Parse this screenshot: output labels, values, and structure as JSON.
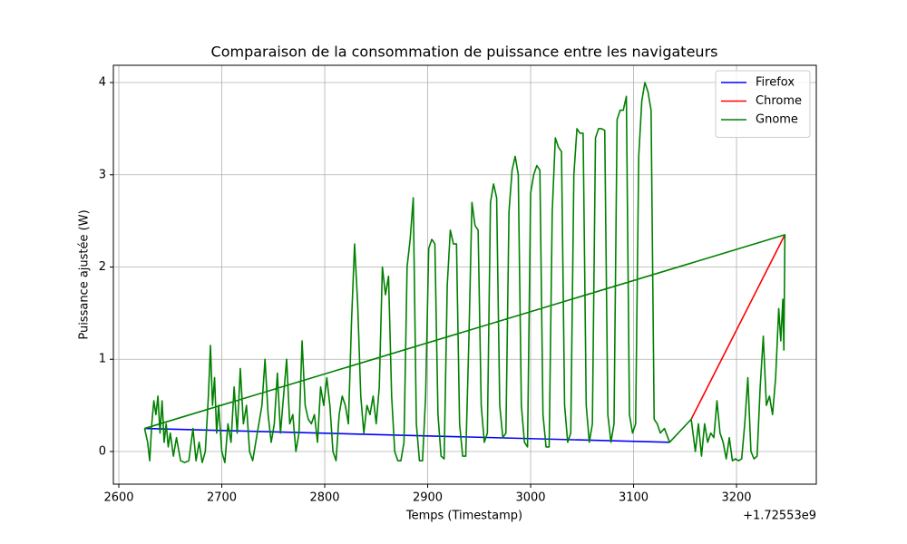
{
  "chart_data": {
    "type": "line",
    "title": "Comparaison de la consommation de puissance entre les navigateurs",
    "x_label": "Temps (Timestamp)",
    "x_offset_label": "+1.72553e9",
    "y_label": "Puissance ajustée (W)",
    "xlim": [
      2594.7,
      3277.5
    ],
    "ylim": [
      -0.354,
      4.187
    ],
    "xticks": [
      2600,
      2700,
      2800,
      2900,
      3000,
      3100,
      3200
    ],
    "yticks": [
      0,
      1,
      2,
      3,
      4
    ],
    "grid": true,
    "legend": "upper right",
    "series": [
      {
        "name": "Firefox",
        "color": "#0000ff",
        "x": [
          2625,
          3135
        ],
        "values": [
          0.25,
          0.1
        ]
      },
      {
        "name": "Chrome",
        "color": "#ff0000",
        "x": [
          3156,
          3247
        ],
        "values": [
          0.35,
          2.35
        ]
      },
      {
        "name": "Gnome",
        "color": "#008000",
        "x": [
          2625,
          2628,
          2630,
          2632,
          2634,
          2636,
          2638,
          2640,
          2642,
          2644,
          2646,
          2648,
          2650,
          2653,
          2656,
          2660,
          2664,
          2668,
          2672,
          2675,
          2678,
          2681,
          2684,
          2687,
          2689,
          2691,
          2693,
          2695,
          2697,
          2700,
          2703,
          2706,
          2709,
          2712,
          2715,
          2718,
          2721,
          2724,
          2727,
          2730,
          2733,
          2736,
          2739,
          2742,
          2745,
          2748,
          2751,
          2754,
          2757,
          2760,
          2763,
          2766,
          2769,
          2772,
          2775,
          2778,
          2781,
          2784,
          2787,
          2790,
          2793,
          2796,
          2799,
          2802,
          2805,
          2808,
          2811,
          2814,
          2817,
          2820,
          2823,
          2826,
          2829,
          2832,
          2835,
          2838,
          2841,
          2844,
          2847,
          2850,
          2853,
          2856,
          2859,
          2862,
          2865,
          2868,
          2871,
          2874,
          2877,
          2880,
          2883,
          2886,
          2889,
          2892,
          2895,
          2898,
          2901,
          2904,
          2907,
          2910,
          2913,
          2916,
          2919,
          2922,
          2925,
          2928,
          2931,
          2934,
          2937,
          2940,
          2943,
          2946,
          2949,
          2952,
          2955,
          2958,
          2961,
          2964,
          2967,
          2970,
          2973,
          2976,
          2979,
          2982,
          2985,
          2988,
          2991,
          2994,
          2997,
          3000,
          3003,
          3006,
          3009,
          3012,
          3015,
          3018,
          3021,
          3024,
          3027,
          3030,
          3033,
          3036,
          3039,
          3042,
          3045,
          3048,
          3051,
          3054,
          3057,
          3060,
          3063,
          3066,
          3069,
          3072,
          3075,
          3078,
          3081,
          3084,
          3087,
          3090,
          3093,
          3096,
          3099,
          3102,
          3105,
          3108,
          3111,
          3114,
          3117,
          3120,
          3123,
          3126,
          3130,
          3135,
          3156,
          3160,
          3163,
          3166,
          3169,
          3172,
          3175,
          3178,
          3181,
          3184,
          3187,
          3190,
          3193,
          3196,
          3199,
          3202,
          3205,
          3208,
          3211,
          3214,
          3217,
          3220,
          3223,
          3226,
          3229,
          3232,
          3235,
          3238,
          3241,
          3243,
          3245,
          3246,
          3247,
          2625
        ],
        "values": [
          0.25,
          0.1,
          -0.1,
          0.3,
          0.55,
          0.4,
          0.6,
          0.2,
          0.55,
          0.1,
          0.3,
          0.05,
          0.2,
          -0.05,
          0.15,
          -0.1,
          -0.12,
          -0.1,
          0.25,
          -0.1,
          0.1,
          -0.12,
          0.0,
          0.6,
          1.15,
          0.5,
          0.8,
          0.2,
          0.5,
          0.0,
          -0.12,
          0.3,
          0.1,
          0.7,
          0.2,
          0.9,
          0.3,
          0.5,
          0.0,
          -0.1,
          0.1,
          0.3,
          0.5,
          1.0,
          0.4,
          0.1,
          0.3,
          0.85,
          0.2,
          0.6,
          1.0,
          0.3,
          0.4,
          0.0,
          0.2,
          1.2,
          0.5,
          0.35,
          0.3,
          0.4,
          0.1,
          0.7,
          0.5,
          0.8,
          0.5,
          0.0,
          -0.1,
          0.4,
          0.6,
          0.5,
          0.3,
          1.4,
          2.25,
          1.6,
          0.6,
          0.2,
          0.5,
          0.4,
          0.6,
          0.3,
          0.7,
          2.0,
          1.7,
          1.9,
          0.6,
          0.0,
          -0.1,
          -0.1,
          0.1,
          2.0,
          2.3,
          2.75,
          0.3,
          -0.1,
          -0.1,
          0.6,
          2.2,
          2.3,
          2.25,
          0.4,
          -0.05,
          -0.08,
          1.8,
          2.4,
          2.25,
          2.25,
          0.3,
          -0.05,
          -0.05,
          1.2,
          2.7,
          2.45,
          2.4,
          0.5,
          0.1,
          0.2,
          2.7,
          2.9,
          2.75,
          0.5,
          0.15,
          0.2,
          2.6,
          3.05,
          3.2,
          3.0,
          0.5,
          0.1,
          0.05,
          2.8,
          3.0,
          3.1,
          3.05,
          0.4,
          0.05,
          0.05,
          2.6,
          3.4,
          3.3,
          3.25,
          0.5,
          0.1,
          0.2,
          3.0,
          3.5,
          3.45,
          3.45,
          0.5,
          0.1,
          0.3,
          3.4,
          3.5,
          3.5,
          3.48,
          0.4,
          0.1,
          0.3,
          3.6,
          3.7,
          3.7,
          3.85,
          0.4,
          0.2,
          0.3,
          3.2,
          3.8,
          4.0,
          3.9,
          3.7,
          0.35,
          0.3,
          0.2,
          0.25,
          0.1,
          0.35,
          0.0,
          0.3,
          -0.05,
          0.3,
          0.1,
          0.2,
          0.15,
          0.55,
          0.2,
          0.1,
          -0.08,
          0.15,
          -0.1,
          -0.08,
          -0.1,
          -0.08,
          0.3,
          0.8,
          0.0,
          -0.08,
          -0.05,
          0.7,
          1.25,
          0.5,
          0.6,
          0.4,
          0.8,
          1.55,
          1.2,
          1.65,
          1.1,
          2.35,
          0.25
        ]
      }
    ]
  }
}
